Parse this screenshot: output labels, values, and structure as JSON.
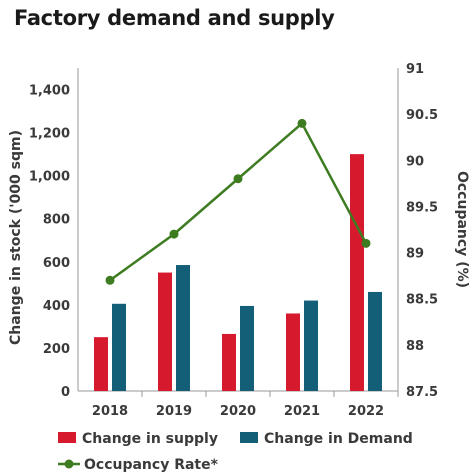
{
  "chart_data": {
    "type": "bar",
    "title": "Factory demand and supply",
    "categories": [
      "2018",
      "2019",
      "2020",
      "2021",
      "2022"
    ],
    "series": [
      {
        "name": "Change in supply",
        "type": "bar",
        "axis": "left",
        "color": "#d7192e",
        "values": [
          250,
          550,
          265,
          360,
          1100
        ]
      },
      {
        "name": "Change in Demand",
        "type": "bar",
        "axis": "left",
        "color": "#135f78",
        "values": [
          405,
          585,
          395,
          420,
          460
        ]
      },
      {
        "name": "Occupancy Rate*",
        "type": "line",
        "axis": "right",
        "color": "#3e7c22",
        "values": [
          88.7,
          89.2,
          89.8,
          90.4,
          89.1
        ]
      }
    ],
    "ylabel": "Change in stock ('000 sqm)",
    "ylim": [
      0,
      1500
    ],
    "yticks": [
      "0",
      "200",
      "400",
      "600",
      "800",
      "1,000",
      "1,200",
      "1,400"
    ],
    "y2label": "Occupancy (%)",
    "y2lim": [
      87.5,
      91
    ],
    "y2ticks": [
      "87.5",
      "88",
      "88.5",
      "89",
      "89.5",
      "90",
      "90.5",
      "91"
    ],
    "grid": false,
    "legend_position": "bottom"
  }
}
